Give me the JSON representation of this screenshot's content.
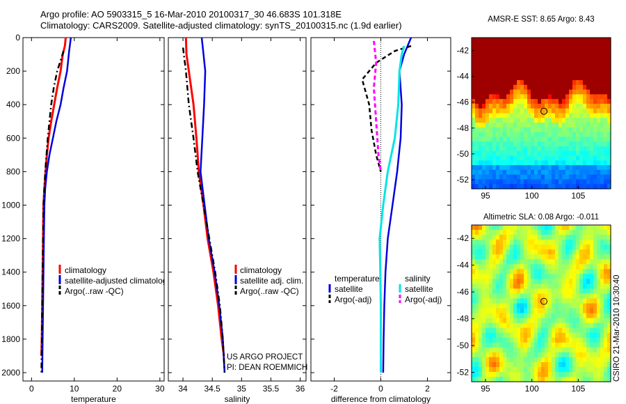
{
  "header": {
    "line1": "Argo profile: AO 5903315_5 16-Mar-2010 20100317_30 46.683S 101.318E",
    "line2": "Climatology: CARS2009. Satellite-adjusted climatology: synTS_20100315.nc (1.9d earlier)"
  },
  "credits": {
    "line1": "US ARGO PROJECT",
    "line2": "PI: DEAN ROEMMICH"
  },
  "side_label": "CSIRO 21-Mar-2010 10:30:40",
  "colors": {
    "climatology": "#ff0000",
    "satellite": "#0000dd",
    "argo": "#000000",
    "satellite_salinity": "#00e5e5",
    "argo_salinity": "#ff00ff"
  },
  "chart_data": [
    {
      "id": "temperature",
      "type": "line",
      "xlabel": "temperature",
      "ylabel": "",
      "xlim": [
        -2,
        31
      ],
      "ylim": [
        0,
        2050
      ],
      "y_reversed": true,
      "xticks": [
        0,
        10,
        20,
        30
      ],
      "yticks": [
        0,
        200,
        400,
        600,
        800,
        1000,
        1200,
        1400,
        1600,
        1800,
        2000
      ],
      "legend": [
        "climatology",
        "satellite-adjusted climatology",
        "Argo(..raw -QC)"
      ],
      "series": [
        {
          "name": "climatology",
          "color": "#ff0000",
          "width": 3,
          "dash": "",
          "points": [
            [
              8.0,
              0
            ],
            [
              7.8,
              50
            ],
            [
              7.3,
              100
            ],
            [
              6.8,
              200
            ],
            [
              6.0,
              300
            ],
            [
              5.3,
              400
            ],
            [
              4.6,
              500
            ],
            [
              4.0,
              600
            ],
            [
              3.6,
              700
            ],
            [
              3.3,
              800
            ],
            [
              3.0,
              900
            ],
            [
              2.8,
              1000
            ],
            [
              2.7,
              1200
            ],
            [
              2.6,
              1400
            ],
            [
              2.5,
              1600
            ],
            [
              2.4,
              1800
            ],
            [
              2.3,
              1900
            ]
          ]
        },
        {
          "name": "satellite-adjusted climatology",
          "color": "#0000dd",
          "width": 2.5,
          "dash": "",
          "points": [
            [
              9.2,
              0
            ],
            [
              8.8,
              80
            ],
            [
              8.3,
              200
            ],
            [
              7.5,
              300
            ],
            [
              6.8,
              400
            ],
            [
              5.8,
              500
            ],
            [
              5.0,
              600
            ],
            [
              4.2,
              700
            ],
            [
              3.6,
              800
            ],
            [
              3.2,
              900
            ],
            [
              3.0,
              1000
            ],
            [
              2.9,
              1200
            ],
            [
              2.8,
              1400
            ],
            [
              2.7,
              1600
            ],
            [
              2.6,
              1800
            ],
            [
              2.5,
              2000
            ]
          ]
        },
        {
          "name": "Argo(..raw -QC)",
          "color": "#000000",
          "width": 2.5,
          "dash": "8,4,2,4",
          "points": [
            [
              7.5,
              80
            ],
            [
              7.0,
              120
            ],
            [
              6.0,
              200
            ],
            [
              5.2,
              300
            ],
            [
              4.6,
              400
            ],
            [
              4.2,
              500
            ],
            [
              3.8,
              600
            ],
            [
              3.5,
              700
            ],
            [
              3.2,
              800
            ],
            [
              3.0,
              900
            ],
            [
              2.8,
              1000
            ],
            [
              2.7,
              1200
            ],
            [
              2.6,
              1400
            ],
            [
              2.5,
              1600
            ],
            [
              2.4,
              1800
            ],
            [
              2.3,
              2000
            ]
          ]
        }
      ]
    },
    {
      "id": "salinity",
      "type": "line",
      "xlabel": "salinity",
      "ylabel": "",
      "xlim": [
        33.75,
        36.1
      ],
      "ylim": [
        0,
        2050
      ],
      "y_reversed": true,
      "xticks": [
        34,
        34.5,
        35,
        35.5,
        36
      ],
      "xticklabels": [
        "34",
        "34.5",
        "35",
        "35.5",
        "36"
      ],
      "legend": [
        "climatology",
        "satellite adj. clim.",
        "Argo(..raw -QC)"
      ],
      "series": [
        {
          "name": "climatology",
          "color": "#ff0000",
          "width": 3,
          "dash": "",
          "points": [
            [
              34.05,
              0
            ],
            [
              34.06,
              100
            ],
            [
              34.1,
              200
            ],
            [
              34.18,
              400
            ],
            [
              34.23,
              600
            ],
            [
              34.27,
              800
            ],
            [
              34.35,
              1000
            ],
            [
              34.42,
              1200
            ],
            [
              34.52,
              1400
            ],
            [
              34.6,
              1600
            ],
            [
              34.66,
              1800
            ],
            [
              34.7,
              1900
            ]
          ]
        },
        {
          "name": "satellite adj. clim.",
          "color": "#0000dd",
          "width": 2.5,
          "dash": "",
          "points": [
            [
              34.32,
              0
            ],
            [
              34.35,
              100
            ],
            [
              34.38,
              200
            ],
            [
              34.36,
              400
            ],
            [
              34.33,
              600
            ],
            [
              34.3,
              800
            ],
            [
              34.37,
              1000
            ],
            [
              34.44,
              1200
            ],
            [
              34.54,
              1400
            ],
            [
              34.62,
              1600
            ],
            [
              34.68,
              1800
            ],
            [
              34.71,
              2000
            ]
          ]
        },
        {
          "name": "Argo(..raw -QC)",
          "color": "#000000",
          "width": 2.5,
          "dash": "8,4,2,4",
          "points": [
            [
              34.0,
              60
            ],
            [
              34.05,
              200
            ],
            [
              34.1,
              400
            ],
            [
              34.18,
              600
            ],
            [
              34.25,
              800
            ],
            [
              34.35,
              1000
            ],
            [
              34.45,
              1200
            ],
            [
              34.55,
              1400
            ],
            [
              34.63,
              1600
            ],
            [
              34.68,
              1800
            ],
            [
              34.71,
              2000
            ]
          ]
        }
      ]
    },
    {
      "id": "difference",
      "type": "line",
      "xlabel": "difference from climatology",
      "ylabel": "",
      "xlim": [
        -3,
        3
      ],
      "ylim": [
        0,
        2050
      ],
      "y_reversed": true,
      "xticks": [
        -2,
        0,
        2
      ],
      "legend_groups": [
        {
          "title": "temperature",
          "items": [
            "satellite",
            "Argo(-adj)"
          ]
        },
        {
          "title": "salinity",
          "items": [
            "satellite",
            "Argo(-adj)"
          ]
        }
      ],
      "series": [
        {
          "name": "temperature satellite",
          "color": "#0000dd",
          "width": 2.5,
          "dash": "",
          "points": [
            [
              1.3,
              0
            ],
            [
              1.0,
              100
            ],
            [
              0.8,
              200
            ],
            [
              0.9,
              400
            ],
            [
              0.85,
              600
            ],
            [
              0.7,
              800
            ],
            [
              0.5,
              1000
            ],
            [
              0.3,
              1200
            ],
            [
              0.2,
              1400
            ],
            [
              0.15,
              1600
            ],
            [
              0.12,
              1800
            ],
            [
              0.1,
              2000
            ]
          ]
        },
        {
          "name": "temperature Argo(-adj)",
          "color": "#000000",
          "width": 2.5,
          "dash": "6,4",
          "points": [
            [
              1.3,
              50
            ],
            [
              0.6,
              80
            ],
            [
              -0.2,
              150
            ],
            [
              -0.8,
              250
            ],
            [
              -0.5,
              400
            ],
            [
              -0.4,
              550
            ],
            [
              -0.2,
              700
            ],
            [
              0.0,
              800
            ]
          ]
        },
        {
          "name": "salinity satellite",
          "color": "#00e5e5",
          "width": 3,
          "dash": "",
          "points": [
            [
              1.0,
              50
            ],
            [
              0.9,
              100
            ],
            [
              0.8,
              200
            ],
            [
              0.75,
              400
            ],
            [
              0.6,
              600
            ],
            [
              0.3,
              800
            ],
            [
              0.1,
              1000
            ],
            [
              -0.05,
              1200
            ],
            [
              -0.02,
              1400
            ],
            [
              0.0,
              1600
            ],
            [
              0.0,
              1800
            ],
            [
              0.0,
              2000
            ]
          ]
        },
        {
          "name": "salinity Argo(-adj)",
          "color": "#ff00ff",
          "width": 3,
          "dash": "6,4",
          "points": [
            [
              -0.3,
              20
            ],
            [
              -0.2,
              150
            ],
            [
              -0.3,
              300
            ],
            [
              -0.2,
              500
            ],
            [
              -0.1,
              700
            ],
            [
              0.0,
              800
            ]
          ]
        }
      ]
    },
    {
      "id": "sst-map",
      "type": "heatmap",
      "title": "AMSR-E SST: 8.65 Argo: 8.43",
      "xlim": [
        93.5,
        108.5
      ],
      "ylim": [
        -52.7,
        -41
      ],
      "xticks": [
        95,
        100,
        105
      ],
      "yticks": [
        -42,
        -44,
        -46,
        -48,
        -50,
        -52
      ],
      "marker": {
        "lon": 101.3,
        "lat": -46.7
      }
    },
    {
      "id": "sla-map",
      "type": "heatmap",
      "title": "Altimetric SLA: 0.08 Argo: -0.011",
      "xlim": [
        93.5,
        108.5
      ],
      "ylim": [
        -52.7,
        -41
      ],
      "xticks": [
        95,
        100,
        105
      ],
      "yticks": [
        -42,
        -44,
        -46,
        -48,
        -50,
        -52
      ],
      "marker": {
        "lon": 101.3,
        "lat": -46.7
      }
    }
  ]
}
